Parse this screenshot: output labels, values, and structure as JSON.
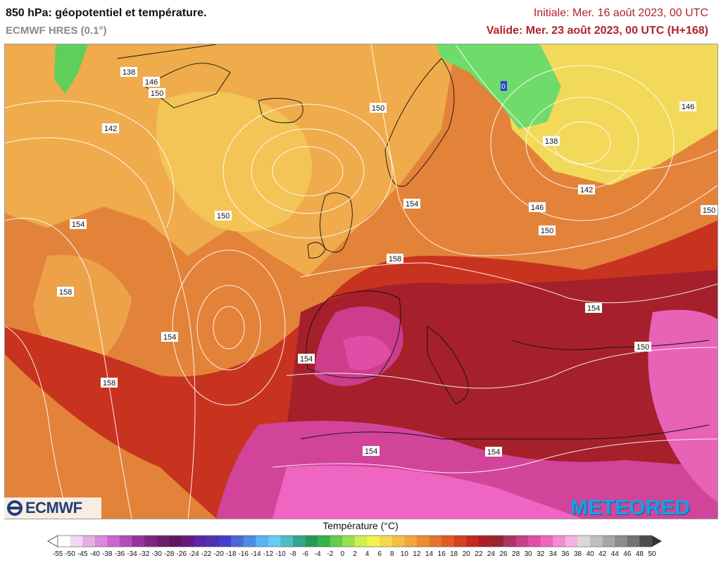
{
  "header": {
    "title": "850 hPa: géopotentiel et température.",
    "subtitle": "ECMWF HRES (0.1°)",
    "initial": "Initiale: Mer. 16 août 2023, 00 UTC",
    "valid": "Valide: Mer. 23 août 2023, 00 UTC (H+168)"
  },
  "map": {
    "contour_labels": [
      {
        "text": "138",
        "lon_lat": "Greenland west"
      },
      {
        "text": "146"
      },
      {
        "text": "150"
      },
      {
        "text": "142"
      },
      {
        "text": "150"
      },
      {
        "text": "154"
      },
      {
        "text": "150"
      },
      {
        "text": "158"
      },
      {
        "text": "154"
      },
      {
        "text": "158"
      },
      {
        "text": "154"
      },
      {
        "text": "154"
      },
      {
        "text": "158"
      },
      {
        "text": "154"
      },
      {
        "text": "146"
      },
      {
        "text": "150"
      },
      {
        "text": "142"
      },
      {
        "text": "138"
      },
      {
        "text": "146"
      },
      {
        "text": "150"
      },
      {
        "text": "154"
      },
      {
        "text": "150"
      },
      {
        "text": "154"
      },
      {
        "text": "154"
      },
      {
        "text": "0"
      }
    ]
  },
  "logos": {
    "left": "ECMWF",
    "right": "METEORED"
  },
  "legend": {
    "title": "Température (°C)",
    "ticks": [
      "-55",
      "-50",
      "-45",
      "-40",
      "-38",
      "-36",
      "-34",
      "-32",
      "-30",
      "-28",
      "-26",
      "-24",
      "-22",
      "-20",
      "-18",
      "-16",
      "-14",
      "-12",
      "-10",
      "-8",
      "-6",
      "-4",
      "-2",
      "0",
      "2",
      "4",
      "6",
      "8",
      "10",
      "12",
      "14",
      "16",
      "18",
      "20",
      "22",
      "24",
      "26",
      "28",
      "30",
      "32",
      "34",
      "36",
      "38",
      "40",
      "42",
      "44",
      "46",
      "48",
      "50"
    ],
    "colors": [
      "#ffffff",
      "#f2d6f2",
      "#e6aee6",
      "#d98ad9",
      "#cc66cc",
      "#b34db3",
      "#993399",
      "#802680",
      "#6b1f6b",
      "#5c1a5c",
      "#661a80",
      "#5926a6",
      "#4d33b3",
      "#4040cc",
      "#4d66d9",
      "#4d8ce6",
      "#59b3f2",
      "#66ccf2",
      "#4dbfbf",
      "#33a68c",
      "#26995a",
      "#33b34d",
      "#66cc4d",
      "#99e04d",
      "#ccf04d",
      "#f2f24d",
      "#f2d94d",
      "#f2bf40",
      "#f2a63a",
      "#ee8c33",
      "#e8732d",
      "#e05a26",
      "#d44020",
      "#c42a1f",
      "#ad1f26",
      "#992633",
      "#b03366",
      "#cc3d8c",
      "#e04da6",
      "#ee66c2",
      "#f28cd4",
      "#f2b3e0",
      "#d9d9d9",
      "#bfbfbf",
      "#a6a6a6",
      "#8c8c8c",
      "#737373",
      "#4d4d4d"
    ]
  }
}
